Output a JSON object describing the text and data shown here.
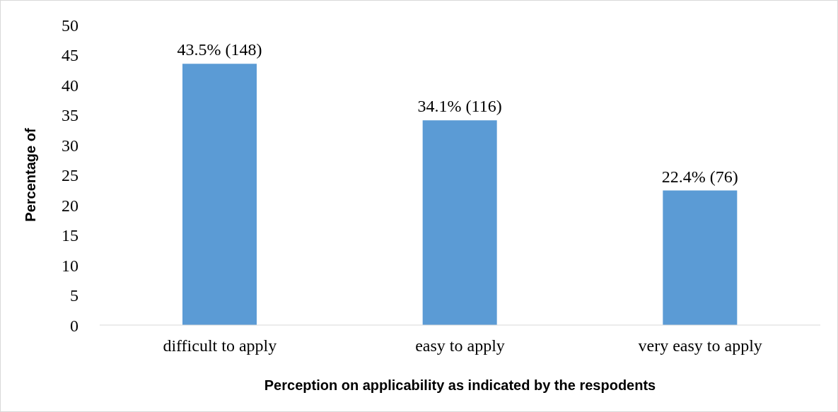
{
  "chart_data": {
    "type": "bar",
    "xlabel": "Perception on applicability as indicated by the respodents",
    "ylabel": "Percentage of",
    "categories": [
      "difficult to apply",
      "easy to apply",
      "very easy to apply"
    ],
    "values": [
      43.5,
      34.1,
      22.4
    ],
    "value_labels": [
      "43.5% (148)",
      "34.1% (116)",
      "22.4% (76)"
    ],
    "color": "#5b9bd5",
    "ylim": [
      0,
      50
    ],
    "yticks": [
      0,
      5,
      10,
      15,
      20,
      25,
      30,
      35,
      40,
      45,
      50
    ]
  }
}
